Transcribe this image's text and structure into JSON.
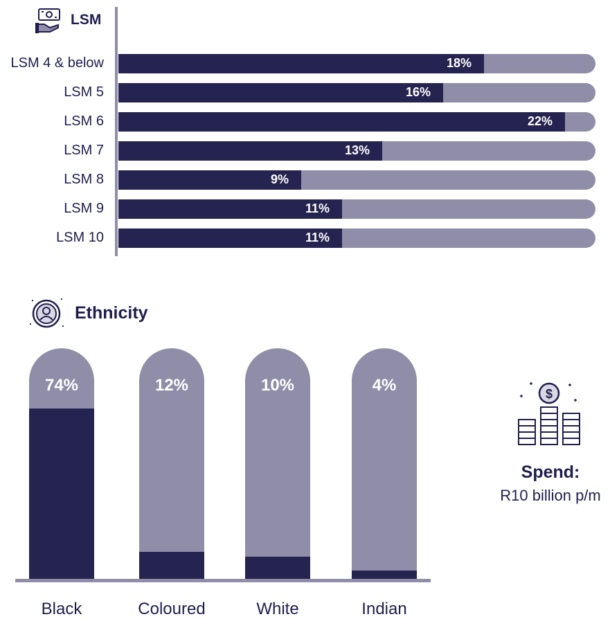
{
  "lsm_section": {
    "title": "LSM",
    "icon": "money-hand-icon"
  },
  "ethnicity_section": {
    "title": "Ethnicity",
    "icon": "person-badge-icon"
  },
  "spend": {
    "label": "Spend:",
    "value": "R10 billion p/m",
    "icon": "coin-stacks-icon"
  },
  "colors": {
    "dark": "#25234f",
    "muted": "#8f8da8",
    "text": "#1f1d4f"
  },
  "chart_data": [
    {
      "type": "bar",
      "orientation": "horizontal",
      "title": "LSM",
      "categories": [
        "LSM 4 & below",
        "LSM 5",
        "LSM 6",
        "LSM 7",
        "LSM 8",
        "LSM 9",
        "LSM 10"
      ],
      "values": [
        18,
        16,
        22,
        13,
        9,
        11,
        11
      ],
      "value_labels": [
        "18%",
        "16%",
        "22%",
        "13%",
        "9%",
        "11%",
        "11%"
      ],
      "xlim": [
        0,
        23.5
      ],
      "grid": false
    },
    {
      "type": "bar",
      "orientation": "vertical",
      "title": "Ethnicity",
      "categories": [
        "Black",
        "Coloured",
        "White",
        "Indian"
      ],
      "values": [
        74,
        12,
        10,
        4
      ],
      "value_labels": [
        "74%",
        "12%",
        "10%",
        "4%"
      ],
      "ylim": [
        0,
        100
      ],
      "grid": false
    }
  ]
}
